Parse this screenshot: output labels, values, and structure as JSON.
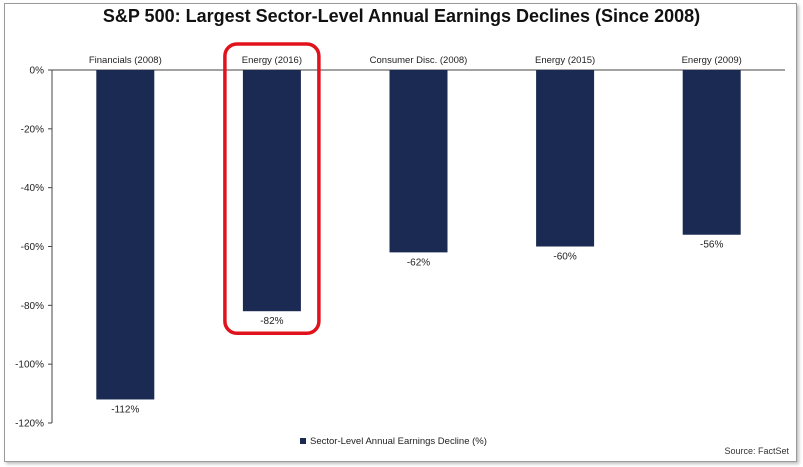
{
  "chart_data": {
    "type": "bar",
    "title": "S&P 500: Largest Sector-Level Annual Earnings Declines (Since 2008)",
    "categories": [
      "Financials (2008)",
      "Energy (2016)",
      "Consumer Disc. (2008)",
      "Energy (2015)",
      "Energy (2009)"
    ],
    "series": [
      {
        "name": "Sector-Level Annual Earnings Decline (%)",
        "values": [
          -112,
          -82,
          -62,
          -60,
          -56
        ]
      }
    ],
    "data_labels": [
      "-112%",
      "-82%",
      "-62%",
      "-60%",
      "-56%"
    ],
    "ylim": [
      -120,
      0
    ],
    "yticks": [
      0,
      -20,
      -40,
      -60,
      -80,
      -100,
      -120
    ],
    "ytick_labels": [
      "0%",
      "-20%",
      "-40%",
      "-60%",
      "-80%",
      "-100%",
      "-120%"
    ],
    "legend_position": "bottom-center",
    "highlighted_category": "Energy (2016)",
    "bar_color": "#1b2a52",
    "highlight_color": "#e0131c",
    "source": "Source: FactSet"
  }
}
